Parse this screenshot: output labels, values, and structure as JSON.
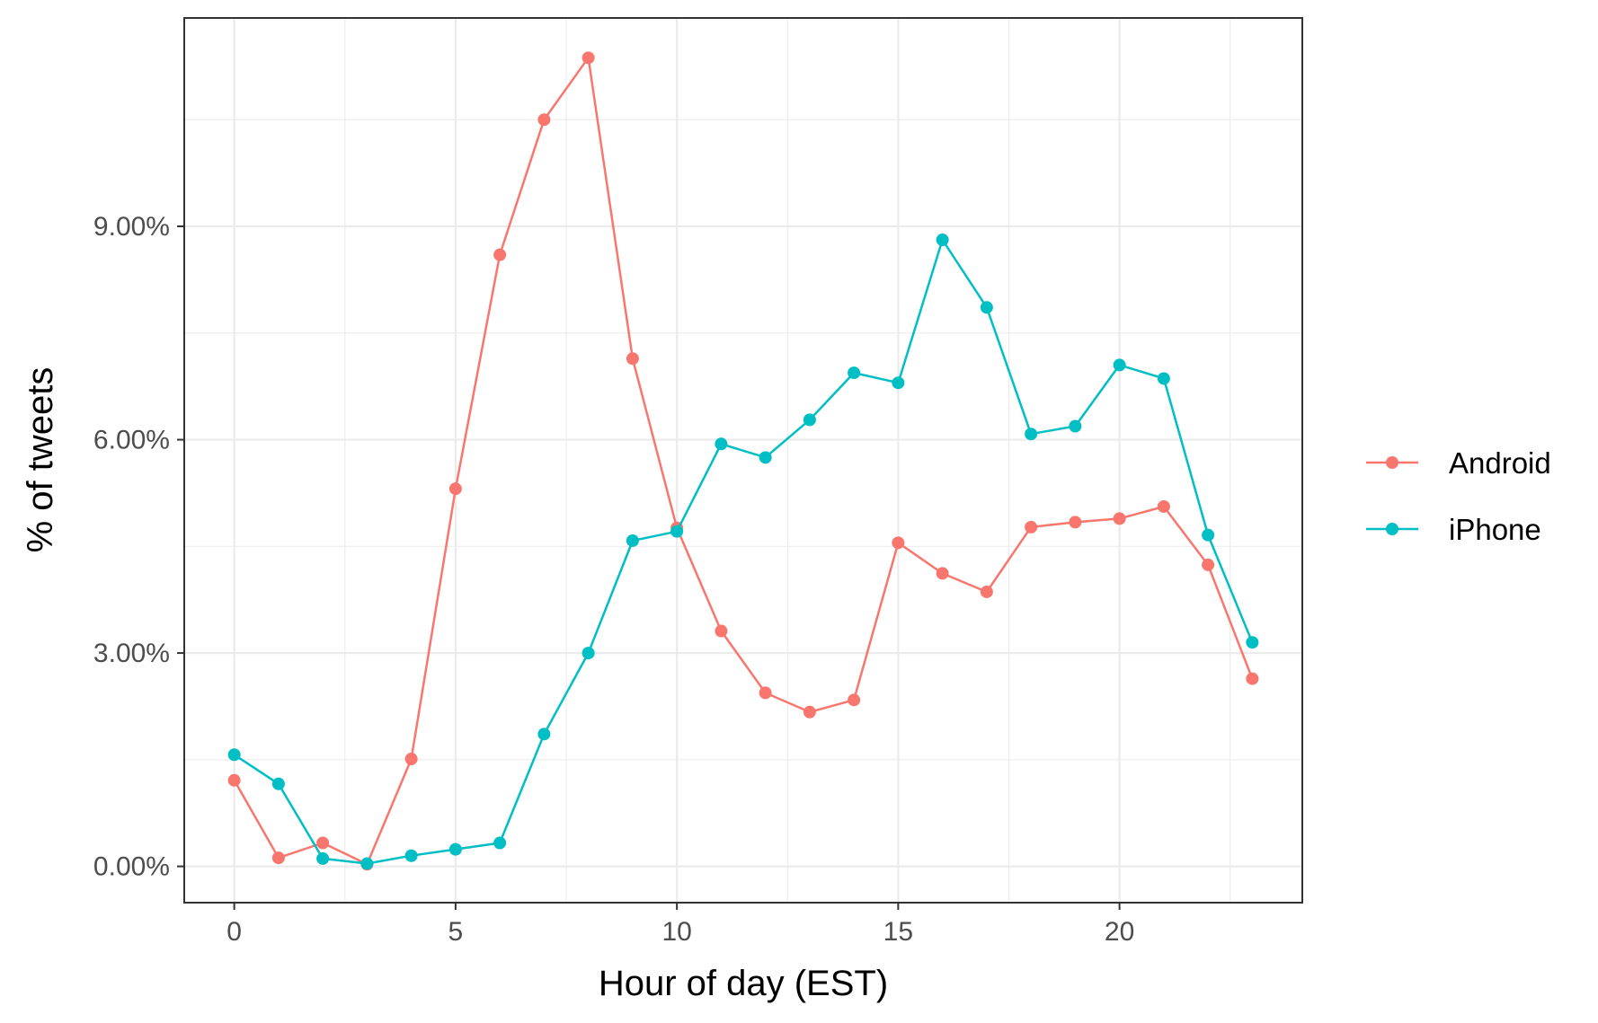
{
  "chart_data": {
    "type": "line",
    "title": "",
    "xlabel": "Hour of day (EST)",
    "ylabel": "% of tweets",
    "xlim": [
      -1.13,
      24.13
    ],
    "ylim": [
      -0.0051,
      0.1193
    ],
    "x_ticks": [
      0,
      5,
      10,
      15,
      20
    ],
    "x_tick_labels": [
      "0",
      "5",
      "10",
      "15",
      "20"
    ],
    "x_minor_ticks": [
      2.5,
      7.5,
      12.5,
      17.5,
      22.5
    ],
    "y_ticks": [
      0,
      0.03,
      0.06,
      0.09
    ],
    "y_tick_labels": [
      "0.00%",
      "3.00%",
      "6.00%",
      "9.00%"
    ],
    "y_minor_ticks": [
      0.015,
      0.045,
      0.075,
      0.105
    ],
    "grid": true,
    "legend_position": "right",
    "x": [
      0,
      1,
      2,
      3,
      4,
      5,
      6,
      7,
      8,
      9,
      10,
      11,
      12,
      13,
      14,
      15,
      16,
      17,
      18,
      19,
      20,
      21,
      22,
      23
    ],
    "series": [
      {
        "name": "Android",
        "color": "#F8766D",
        "values": [
          0.0121,
          0.0012,
          0.0033,
          0.0003,
          0.0151,
          0.0531,
          0.086,
          0.105,
          0.1137,
          0.0714,
          0.0476,
          0.0331,
          0.0244,
          0.0217,
          0.0234,
          0.0455,
          0.0412,
          0.0386,
          0.0477,
          0.0484,
          0.0489,
          0.0506,
          0.0424,
          0.0264
        ]
      },
      {
        "name": "iPhone",
        "color": "#00BFC4",
        "values": [
          0.0157,
          0.0116,
          0.0011,
          0.0004,
          0.0015,
          0.0024,
          0.0033,
          0.0186,
          0.03,
          0.0458,
          0.0471,
          0.0594,
          0.0575,
          0.0628,
          0.0694,
          0.068,
          0.0881,
          0.0786,
          0.0608,
          0.0619,
          0.0705,
          0.0686,
          0.0466,
          0.0315
        ]
      }
    ]
  }
}
